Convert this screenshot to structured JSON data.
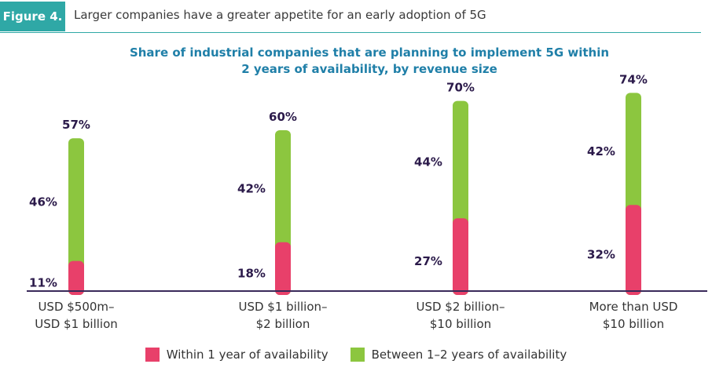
{
  "figure": {
    "badge": "Figure 4.",
    "title": "Larger companies have a greater appetite for an early adoption of 5G"
  },
  "chart_data": {
    "type": "bar",
    "stacked": true,
    "title_lines": [
      "Share of industrial companies that are planning to implement 5G within",
      "2 years of availability, by revenue size"
    ],
    "categories": [
      [
        "USD $500m–",
        "USD $1 billion"
      ],
      [
        "USD $1 billion–",
        "$2 billion"
      ],
      [
        "USD $2 billion–",
        "$10 billion"
      ],
      [
        "More than USD",
        "$10 billion"
      ]
    ],
    "series": [
      {
        "name": "Within 1 year of availability",
        "color": "#e8406a",
        "values": [
          11,
          18,
          27,
          32
        ]
      },
      {
        "name": "Between 1–2 years of availability",
        "color": "#8cc63f",
        "values": [
          46,
          42,
          44,
          42
        ]
      }
    ],
    "total_labels": [
      "57%",
      "60%",
      "70%",
      "74%"
    ],
    "segment_labels": [
      [
        "11%",
        "18%",
        "27%",
        "32%"
      ],
      [
        "46%",
        "42%",
        "44%",
        "42%"
      ]
    ],
    "ylim": [
      0,
      100
    ],
    "grid": false,
    "legend_position": "bottom"
  }
}
